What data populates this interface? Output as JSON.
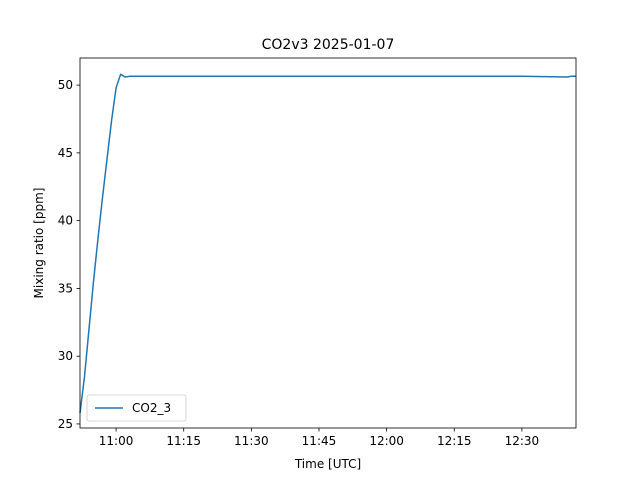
{
  "chart_data": {
    "type": "line",
    "title": "CO2v3 2025-01-07",
    "xlabel": "Time [UTC]",
    "ylabel": "Mixing ratio [ppm]",
    "xlim": [
      "10:52",
      "12:42"
    ],
    "ylim": [
      24.7,
      52.0
    ],
    "xticks": [
      "11:00",
      "11:15",
      "11:30",
      "11:45",
      "12:00",
      "12:15",
      "12:30"
    ],
    "yticks": [
      25,
      30,
      35,
      40,
      45,
      50
    ],
    "grid": false,
    "legend": {
      "location": "lower-left",
      "entries": [
        "CO2_3"
      ]
    },
    "series": [
      {
        "name": "CO2_3",
        "color": "#1f77b4",
        "points": [
          [
            "10:52",
            25.8
          ],
          [
            "10:53",
            28.5
          ],
          [
            "10:54",
            32.0
          ],
          [
            "10:55",
            35.5
          ],
          [
            "10:56",
            38.7
          ],
          [
            "10:57",
            41.7
          ],
          [
            "10:58",
            44.6
          ],
          [
            "10:59",
            47.4
          ],
          [
            "11:00",
            49.8
          ],
          [
            "11:01",
            50.8
          ],
          [
            "11:02",
            50.6
          ],
          [
            "11:03",
            50.65
          ],
          [
            "11:05",
            50.65
          ],
          [
            "11:15",
            50.65
          ],
          [
            "11:30",
            50.65
          ],
          [
            "11:45",
            50.65
          ],
          [
            "12:00",
            50.65
          ],
          [
            "12:15",
            50.65
          ],
          [
            "12:30",
            50.65
          ],
          [
            "12:40",
            50.6
          ],
          [
            "12:41",
            50.65
          ],
          [
            "12:42",
            50.65
          ]
        ]
      }
    ]
  }
}
